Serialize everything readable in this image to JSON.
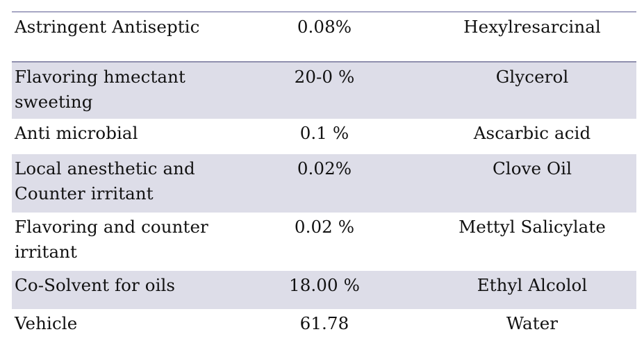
{
  "table": {
    "rows": [
      {
        "function": "Astringent Antiseptic",
        "concentration": "0.08%",
        "ingredient": "Hexylresarcinal",
        "shaded": false
      },
      {
        "function": "Flavoring hmectant sweeting",
        "concentration": "20-0 %",
        "ingredient": "Glycerol",
        "shaded": true
      },
      {
        "function": "Anti microbial",
        "concentration": "0.1 %",
        "ingredient": "Ascarbic  acid",
        "shaded": false
      },
      {
        "function": "Local anesthetic and Counter irritant",
        "concentration": "0.02%",
        "ingredient": "Clove Oil",
        "shaded": true
      },
      {
        "function": "Flavoring and counter irritant",
        "concentration": "0.02  %",
        "ingredient": "Mettyl Salicylate",
        "shaded": false
      },
      {
        "function": "Co-Solvent for oils",
        "concentration": "18.00 %",
        "ingredient": "Ethyl Alcolol",
        "shaded": true
      },
      {
        "function": "Vehicle",
        "concentration": "61.78",
        "ingredient": "Water",
        "shaded": false
      }
    ]
  },
  "colors": {
    "shaded_row": "#dddde8",
    "border": "#8f8fae",
    "text": "#111111"
  }
}
